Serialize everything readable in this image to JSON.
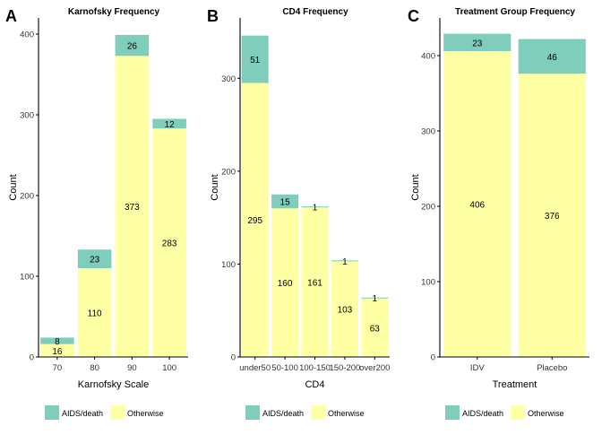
{
  "colors": {
    "aids_death": "#7FCDBB",
    "otherwise": "#FFFFA3",
    "axis": "#000000",
    "text": "#000000"
  },
  "chart_data": [
    {
      "panel_letter": "A",
      "type": "bar",
      "stacked": true,
      "title": "Karnofsky Frequency",
      "xlabel": "Karnofsky Scale",
      "ylabel": "Count",
      "ylim": [
        0,
        420
      ],
      "yticks": [
        0,
        100,
        200,
        300,
        400
      ],
      "categories": [
        "70",
        "80",
        "90",
        "100"
      ],
      "series": [
        {
          "name": "Otherwise",
          "values": [
            16,
            110,
            373,
            283
          ]
        },
        {
          "name": "AIDS/death",
          "values": [
            8,
            23,
            26,
            12
          ]
        }
      ],
      "legend": {
        "position": "bottom",
        "entries": [
          "AIDS/death",
          "Otherwise"
        ]
      }
    },
    {
      "panel_letter": "B",
      "type": "bar",
      "stacked": true,
      "title": "CD4 Frequency",
      "xlabel": "CD4",
      "ylabel": "Count",
      "ylim": [
        0,
        365
      ],
      "yticks": [
        0,
        100,
        200,
        300
      ],
      "categories": [
        "under50",
        "50-100",
        "100-150",
        "150-200",
        "over200"
      ],
      "series": [
        {
          "name": "Otherwise",
          "values": [
            295,
            160,
            161,
            103,
            63
          ]
        },
        {
          "name": "AIDS/death",
          "values": [
            51,
            15,
            1,
            1,
            1
          ]
        }
      ],
      "legend": {
        "position": "bottom",
        "entries": [
          "AIDS/death",
          "Otherwise"
        ]
      }
    },
    {
      "panel_letter": "C",
      "type": "bar",
      "stacked": true,
      "title": "Treatment Group Frequency",
      "xlabel": "Treatment",
      "ylabel": "Count",
      "ylim": [
        0,
        450
      ],
      "yticks": [
        0,
        100,
        200,
        300,
        400
      ],
      "categories": [
        "IDV",
        "Placebo"
      ],
      "series": [
        {
          "name": "Otherwise",
          "values": [
            406,
            376
          ]
        },
        {
          "name": "AIDS/death",
          "values": [
            23,
            46
          ]
        }
      ],
      "legend": {
        "position": "bottom",
        "entries": [
          "AIDS/death",
          "Otherwise"
        ]
      }
    }
  ]
}
